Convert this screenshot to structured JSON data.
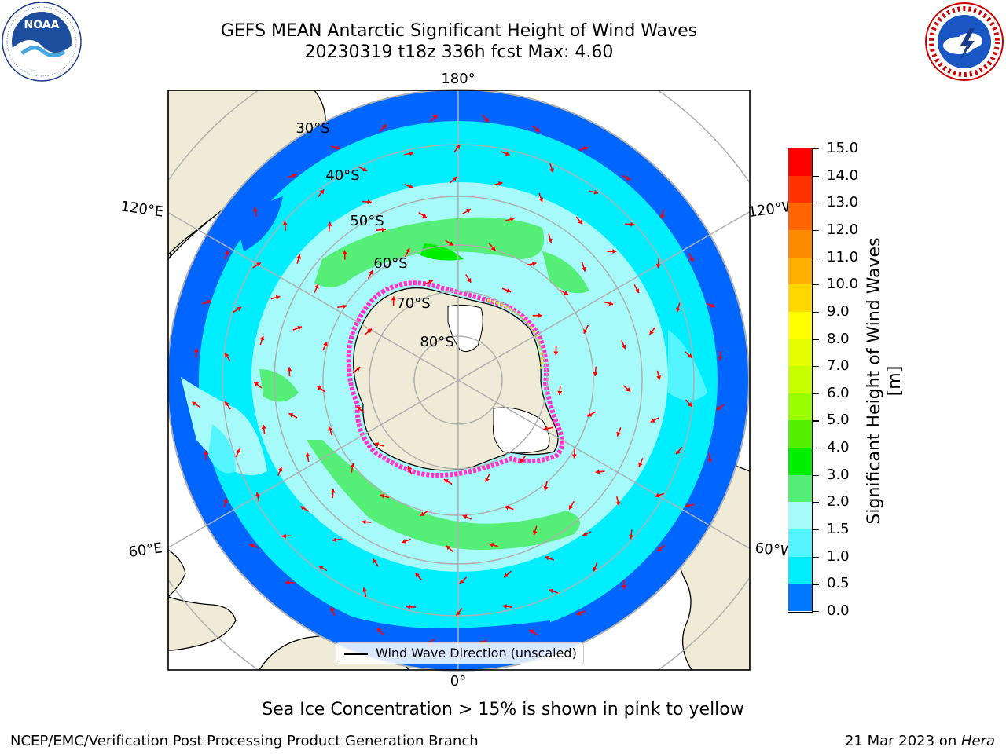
{
  "title": {
    "line1": "GEFS MEAN Antarctic Significant Height of Wind Waves",
    "line2": "20230319 t18z 336h fcst   Max: 4.60"
  },
  "logos": {
    "left": {
      "icon": "noaa-logo",
      "text": "NOAA",
      "ring": "NATIONAL OCEANIC AND ATMOSPHERIC ADMINISTRATION · U.S. DEPARTMENT OF COMMERCE"
    },
    "right": {
      "icon": "nws-logo",
      "ring": "NATIONAL WEATHER SERVICE"
    }
  },
  "map": {
    "projection": "south-polar-stereographic",
    "longitude_labels": [
      "180°",
      "120°E",
      "120°W",
      "60°E",
      "60°W",
      "0°"
    ],
    "latitude_labels": [
      "30°S",
      "40°S",
      "50°S",
      "60°S",
      "70°S",
      "80°S"
    ],
    "colors": {
      "land": "#efebd7",
      "ocean_low": "#0066ff",
      "ocean_mid": "#00eeff",
      "ocean_light": "#a6fbfa",
      "ocean_green": "#55ee77",
      "sea_ice": "#ff33cc",
      "arrow": "#ff0000",
      "grid": "#b0b0b0"
    }
  },
  "legend": {
    "label": "Wind Wave Direction (unscaled)"
  },
  "colorbar": {
    "title": "Significant Height of Wind Waves [m]",
    "ticks": [
      "15.0",
      "14.0",
      "13.0",
      "12.0",
      "11.0",
      "10.0",
      "9.0",
      "8.0",
      "7.0",
      "6.0",
      "5.0",
      "4.0",
      "3.0",
      "2.0",
      "1.5",
      "1.0",
      "0.5",
      "0.0"
    ],
    "colors": [
      "#ff0000",
      "#ff3300",
      "#ff6600",
      "#ff8c00",
      "#ffb000",
      "#ffd700",
      "#ffff00",
      "#e6ff00",
      "#c8ff00",
      "#99ff00",
      "#55ee00",
      "#00ee00",
      "#55ee77",
      "#a6fbfa",
      "#55f5ff",
      "#00eeff",
      "#0077ff",
      "#0000ff"
    ]
  },
  "note": "Sea Ice Concentration > 15% is shown in pink to yellow",
  "footer": {
    "left": "NCEP/EMC/Verification Post Processing Product Generation Branch",
    "right_date": "21 Mar 2023 on ",
    "right_machine": "Hera"
  }
}
